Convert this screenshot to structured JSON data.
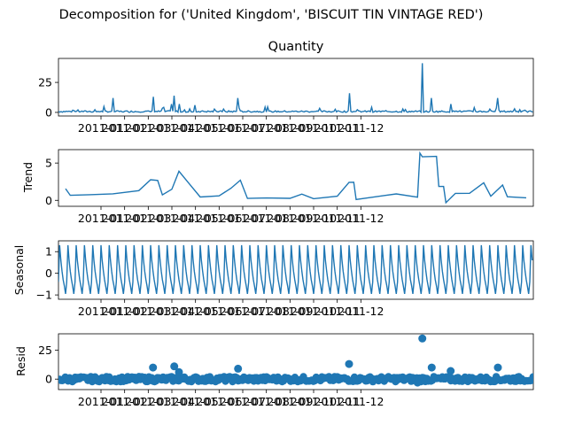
{
  "figure": {
    "suptitle": "Decomposition for ('United Kingdom', 'BISCUIT TIN VINTAGE RED')"
  },
  "colors": {
    "series": "#1f77b4",
    "axis": "#000000",
    "background": "#ffffff"
  },
  "chart_data": [
    {
      "type": "line",
      "title": "Quantity",
      "ylabel": "",
      "ylim": [
        -3,
        45
      ],
      "yticks": [
        0,
        25
      ],
      "xticks": [
        "2011-01",
        "2011-02",
        "2011-03",
        "2011-04",
        "2011-05",
        "2011-06",
        "2011-07",
        "2011-08",
        "2011-09",
        "2011-10",
        "2011-11",
        "2011-12"
      ],
      "baseline": 0.5,
      "noise": 1.3,
      "spikes": [
        [
          0.5,
          12
        ],
        [
          2.2,
          13
        ],
        [
          3.0,
          7
        ],
        [
          3.1,
          14
        ],
        [
          3.3,
          7
        ],
        [
          4.0,
          6
        ],
        [
          5.8,
          12
        ],
        [
          10.5,
          16
        ],
        [
          13.6,
          41
        ],
        [
          14.0,
          12
        ],
        [
          14.8,
          7
        ],
        [
          15.8,
          4
        ],
        [
          16.8,
          12
        ],
        [
          17.5,
          3
        ]
      ]
    },
    {
      "type": "line",
      "title": "",
      "ylabel": "Trend",
      "ylim": [
        -0.8,
        6.8
      ],
      "yticks": [
        0,
        5
      ],
      "xticks": [
        "2011-01",
        "2011-02",
        "2011-03",
        "2011-04",
        "2011-05",
        "2011-06",
        "2011-07",
        "2011-08",
        "2011-09",
        "2011-10",
        "2011-11",
        "2011-12"
      ],
      "points": [
        [
          -1.5,
          1.6
        ],
        [
          -1.3,
          0.7
        ],
        [
          -0.5,
          0.8
        ],
        [
          0.5,
          0.9
        ],
        [
          1.6,
          1.3
        ],
        [
          2.1,
          2.7
        ],
        [
          2.4,
          2.6
        ],
        [
          2.6,
          0.8
        ],
        [
          3.0,
          1.5
        ],
        [
          3.3,
          3.9
        ],
        [
          3.7,
          2.4
        ],
        [
          4.2,
          0.5
        ],
        [
          5.0,
          0.6
        ],
        [
          5.5,
          1.6
        ],
        [
          5.9,
          2.7
        ],
        [
          6.2,
          0.3
        ],
        [
          7.0,
          0.3
        ],
        [
          8.0,
          0.2
        ],
        [
          8.5,
          0.9
        ],
        [
          9.0,
          0.2
        ],
        [
          10.0,
          0.5
        ],
        [
          10.5,
          2.4
        ],
        [
          10.7,
          2.5
        ],
        [
          10.8,
          0.1
        ],
        [
          12.0,
          0.7
        ],
        [
          12.5,
          0.9
        ],
        [
          13.4,
          0.4
        ],
        [
          13.5,
          6.4
        ],
        [
          13.6,
          5.8
        ],
        [
          14.2,
          5.9
        ],
        [
          14.3,
          1.8
        ],
        [
          14.5,
          1.8
        ],
        [
          14.6,
          -0.3
        ],
        [
          15.0,
          1.0
        ],
        [
          15.6,
          1.0
        ],
        [
          16.2,
          2.3
        ],
        [
          16.5,
          0.5
        ],
        [
          17.0,
          2.0
        ],
        [
          17.2,
          0.5
        ],
        [
          18.0,
          0.3
        ]
      ]
    },
    {
      "type": "line",
      "title": "",
      "ylabel": "Seasonal",
      "ylim": [
        -1.2,
        1.5
      ],
      "yticks": [
        -1,
        0,
        1
      ],
      "xticks": [
        "2011-01",
        "2011-02",
        "2011-03",
        "2011-04",
        "2011-05",
        "2011-06",
        "2011-07",
        "2011-08",
        "2011-09",
        "2011-10",
        "2011-11",
        "2011-12"
      ],
      "period": 0.35,
      "pattern": [
        -0.4,
        1.3,
        0.6,
        0.1,
        -0.3,
        -0.6,
        -0.95
      ]
    },
    {
      "type": "scatter",
      "title": "",
      "ylabel": "Resid",
      "ylim": [
        -9,
        39
      ],
      "yticks": [
        0,
        25
      ],
      "xticks": [
        "2011-01",
        "2011-02",
        "2011-03",
        "2011-04",
        "2011-05",
        "2011-06",
        "2011-07",
        "2011-08",
        "2011-09",
        "2011-10",
        "2011-11",
        "2011-12"
      ],
      "noise": 2.2,
      "outliers": [
        [
          2.2,
          10
        ],
        [
          3.1,
          11
        ],
        [
          3.3,
          6
        ],
        [
          5.8,
          9
        ],
        [
          10.5,
          13
        ],
        [
          13.6,
          35
        ],
        [
          14.0,
          10
        ],
        [
          14.8,
          7
        ],
        [
          16.8,
          10
        ],
        [
          13.4,
          -3
        ]
      ]
    }
  ]
}
